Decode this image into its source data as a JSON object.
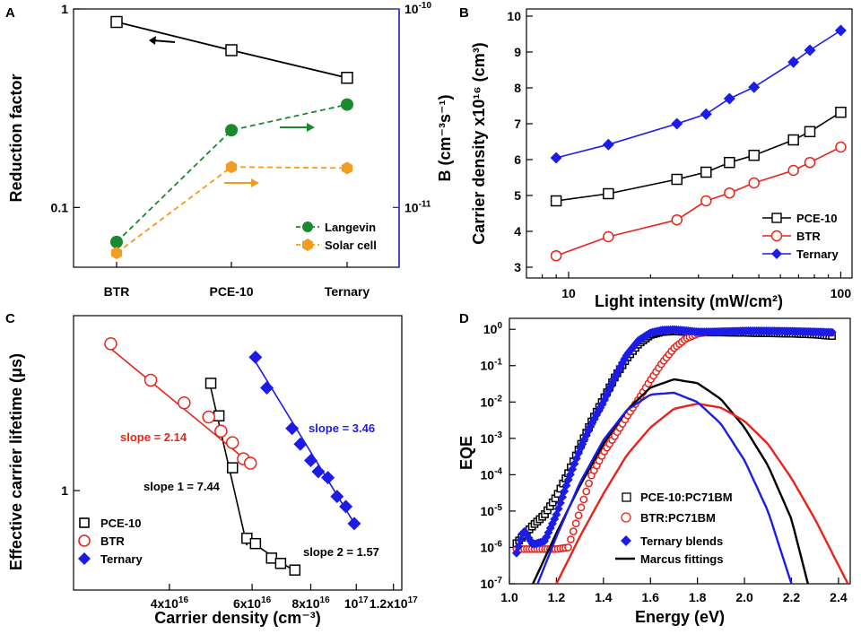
{
  "chart_data": [
    {
      "id": "A",
      "panel_label": "A",
      "type": "line",
      "categories": [
        "BTR",
        "PCE-10",
        "Ternary"
      ],
      "xlabel": "",
      "ylabel": "Reduction factor",
      "ylabel_right": "B (cm⁻³s⁻¹)",
      "yscale": "log",
      "ylim": [
        0.05,
        1
      ],
      "yticks": [
        {
          "v": 1,
          "label": "1"
        },
        {
          "v": 0.1,
          "label": "0.1"
        }
      ],
      "ylim_right": [
        5e-12,
        1e-10
      ],
      "yticks_right": [
        {
          "v": 1e-10,
          "base": "10",
          "exp": "-10"
        },
        {
          "v": 1e-11,
          "base": "10",
          "exp": "-11"
        }
      ],
      "series": [
        {
          "name": "Reduction factor",
          "axis": "left",
          "color": "#000000",
          "marker": "square-open",
          "dash": false,
          "values": [
            0.86,
            0.62,
            0.45
          ]
        },
        {
          "name": "Langevin",
          "axis": "right",
          "color": "#1a8a2e",
          "marker": "circle-filled",
          "dash": true,
          "values": [
            6.7e-12,
            2.45e-11,
            3.3e-11
          ]
        },
        {
          "name": "Solar cell",
          "axis": "right",
          "color": "#f39c22",
          "marker": "hexagon-filled",
          "dash": true,
          "values": [
            5.9e-12,
            1.6e-11,
            1.58e-11
          ]
        }
      ],
      "legend": [
        "Langevin",
        "Solar cell"
      ],
      "legend_position": "bottom-right"
    },
    {
      "id": "B",
      "panel_label": "B",
      "type": "line",
      "xlabel": "Light intensity (mW/cm²)",
      "ylabel": "Carrier density x10¹⁶ (cm³)",
      "xscale": "log",
      "xlim": [
        7,
        110
      ],
      "xticks": [
        {
          "v": 10,
          "label": "10"
        },
        {
          "v": 100,
          "label": "100"
        }
      ],
      "ylim": [
        2.7,
        10.2
      ],
      "yticks": [
        3,
        4,
        5,
        6,
        7,
        8,
        9,
        10
      ],
      "series": [
        {
          "name": "PCE-10",
          "color": "#000000",
          "marker": "square-open",
          "x": [
            9,
            14,
            25,
            32,
            39,
            48,
            67,
            77,
            100
          ],
          "values": [
            4.85,
            5.05,
            5.45,
            5.65,
            5.92,
            6.12,
            6.55,
            6.78,
            7.32
          ]
        },
        {
          "name": "BTR",
          "color": "#e8231c",
          "marker": "circle-open",
          "x": [
            9,
            14,
            25,
            32,
            39,
            48,
            67,
            77,
            100
          ],
          "values": [
            3.32,
            3.85,
            4.32,
            4.85,
            5.07,
            5.35,
            5.7,
            5.92,
            6.35
          ]
        },
        {
          "name": "Ternary",
          "color": "#1c1ce8",
          "marker": "diamond-filled",
          "x": [
            9,
            14,
            25,
            32,
            39,
            48,
            67,
            77,
            100
          ],
          "values": [
            6.05,
            6.42,
            7.0,
            7.27,
            7.7,
            8.02,
            8.72,
            9.05,
            9.6
          ]
        }
      ],
      "legend": [
        "PCE-10",
        "BTR",
        "Ternary"
      ],
      "legend_position": "bottom-right"
    },
    {
      "id": "C",
      "panel_label": "C",
      "type": "scatter",
      "xlabel": "Carrier density (cm⁻³)",
      "ylabel": "Effective carrier lifetime (μs)",
      "xscale": "log",
      "yscale": "log",
      "xlim": [
        2.5e+16,
        1.25e+17
      ],
      "xticks": [
        {
          "v": 4e+16,
          "mant": "4x10",
          "exp": "16"
        },
        {
          "v": 6e+16,
          "mant": "6x10",
          "exp": "16"
        },
        {
          "v": 8e+16,
          "mant": "8x10",
          "exp": "16"
        },
        {
          "v": 1e+17,
          "mant": "10",
          "exp": "17"
        },
        {
          "v": 1.2e+17,
          "mant": "1.2x10",
          "exp": "17"
        }
      ],
      "ylim": [
        0.42,
        4.6
      ],
      "yticks": [
        {
          "v": 1,
          "label": "1"
        }
      ],
      "series": [
        {
          "name": "PCE-10",
          "color": "#000000",
          "marker": "square-open",
          "x": [
            4.9e+16,
            5.1e+16,
            5.45e+16,
            5.85e+16,
            6.1e+16,
            6.6e+16,
            6.9e+16,
            7.4e+16
          ],
          "values": [
            2.55,
            1.92,
            1.22,
            0.66,
            0.63,
            0.555,
            0.53,
            0.5
          ]
        },
        {
          "name": "BTR",
          "color": "#e8231c",
          "marker": "circle-open",
          "x": [
            3e+16,
            3.65e+16,
            4.3e+16,
            4.85e+16,
            5.15e+16,
            5.45e+16,
            5.75e+16,
            5.95e+16
          ],
          "values": [
            3.6,
            2.62,
            2.15,
            1.9,
            1.68,
            1.52,
            1.32,
            1.27
          ]
        },
        {
          "name": "Ternary",
          "color": "#1c1ce8",
          "marker": "diamond-filled",
          "x": [
            6.1e+16,
            6.45e+16,
            7.3e+16,
            7.6e+16,
            8e+16,
            8.3e+16,
            8.7e+16,
            9.1e+16,
            9.5e+16,
            9.9e+16
          ],
          "values": [
            3.2,
            2.45,
            1.72,
            1.5,
            1.3,
            1.18,
            1.12,
            0.95,
            0.87,
            0.75
          ]
        }
      ],
      "annotations": [
        "slope = 2.14",
        "slope = 3.46",
        "slope 1 = 7.44",
        "slope 2 = 1.57"
      ],
      "legend": [
        "PCE-10",
        "BTR",
        "Ternary"
      ],
      "legend_position": "bottom-left"
    },
    {
      "id": "D",
      "panel_label": "D",
      "type": "scatter",
      "xlabel": "Energy (eV)",
      "ylabel": "EQE",
      "xlim": [
        1.0,
        2.45
      ],
      "xticks": [
        1.0,
        1.2,
        1.4,
        1.6,
        1.8,
        2.0,
        2.2,
        2.4
      ],
      "yscale": "log",
      "ylim": [
        1e-07,
        2
      ],
      "yticks": [
        {
          "v": 1,
          "base": "10",
          "exp": "0"
        },
        {
          "v": 0.1,
          "base": "10",
          "exp": "-1"
        },
        {
          "v": 0.01,
          "base": "10",
          "exp": "-2"
        },
        {
          "v": 0.001,
          "base": "10",
          "exp": "-3"
        },
        {
          "v": 0.0001,
          "base": "10",
          "exp": "-4"
        },
        {
          "v": 1e-05,
          "base": "10",
          "exp": "-5"
        },
        {
          "v": 1e-06,
          "base": "10",
          "exp": "-6"
        },
        {
          "v": 1e-07,
          "base": "10",
          "exp": "-7"
        }
      ],
      "series": [
        {
          "name": "PCE-10:PC71BM",
          "color": "#000000",
          "marker": "square-open",
          "x": [
            1.03,
            1.1,
            1.15,
            1.2,
            1.25,
            1.3,
            1.35,
            1.4,
            1.45,
            1.5,
            1.55,
            1.6,
            1.65,
            1.7,
            1.75,
            1.8,
            1.9,
            2.0,
            2.1,
            2.2,
            2.3,
            2.38
          ],
          "values": [
            1.3e-06,
            4e-06,
            8e-06,
            2.5e-05,
            0.00011,
            0.0006,
            0.003,
            0.012,
            0.05,
            0.16,
            0.4,
            0.7,
            0.85,
            0.88,
            0.85,
            0.82,
            0.82,
            0.8,
            0.78,
            0.76,
            0.72,
            0.65
          ]
        },
        {
          "name": "BTR:PC71BM",
          "color": "#e8231c",
          "marker": "circle-open",
          "x": [
            1.03,
            1.1,
            1.15,
            1.2,
            1.25,
            1.3,
            1.35,
            1.4,
            1.45,
            1.5,
            1.55,
            1.6,
            1.65,
            1.7,
            1.75,
            1.8,
            1.85,
            1.9,
            2.0,
            2.1,
            2.2,
            2.3,
            2.38
          ],
          "values": [
            9e-07,
            9e-07,
            9e-07,
            9e-07,
            1e-06,
            1e-05,
            0.0001,
            0.0004,
            0.0012,
            0.004,
            0.012,
            0.04,
            0.12,
            0.3,
            0.55,
            0.75,
            0.85,
            0.88,
            0.9,
            0.9,
            0.89,
            0.85,
            0.8
          ]
        },
        {
          "name": "Ternary blends",
          "color": "#1c1ce8",
          "marker": "diamond-filled",
          "x": [
            1.03,
            1.06,
            1.1,
            1.15,
            1.2,
            1.25,
            1.3,
            1.35,
            1.4,
            1.45,
            1.5,
            1.55,
            1.6,
            1.65,
            1.7,
            1.75,
            1.8,
            1.9,
            2.0,
            2.1,
            2.2,
            2.3,
            2.38
          ],
          "values": [
            7e-07,
            3e-06,
            1.2e-06,
            1.5e-06,
            8e-06,
            7e-05,
            0.0005,
            0.0025,
            0.01,
            0.05,
            0.2,
            0.5,
            0.8,
            0.95,
            0.98,
            0.92,
            0.85,
            0.85,
            0.9,
            0.9,
            0.88,
            0.85,
            0.82
          ]
        },
        {
          "name": "Marcus fittings",
          "color": "#000000",
          "line": true,
          "x": [
            1.1,
            1.2,
            1.3,
            1.4,
            1.5,
            1.6,
            1.7,
            1.8,
            1.9,
            2.0,
            2.1,
            2.2,
            2.27
          ],
          "values": [
            1e-07,
            2.5e-06,
            5e-05,
            0.0007,
            0.006,
            0.025,
            0.042,
            0.033,
            0.012,
            0.002,
            0.00018,
            6e-06,
            1e-07
          ]
        },
        {
          "name": "Marcus fit (BTR)",
          "color": "#e8231c",
          "line": true,
          "x": [
            1.2,
            1.3,
            1.4,
            1.5,
            1.6,
            1.7,
            1.8,
            1.9,
            2.0,
            2.1,
            2.2,
            2.3,
            2.44
          ],
          "values": [
            1e-07,
            2e-06,
            3e-05,
            0.00035,
            0.002,
            0.0065,
            0.009,
            0.007,
            0.003,
            0.0007,
            8e-05,
            6e-06,
            1e-07
          ]
        },
        {
          "name": "Marcus fit (Ternary)",
          "color": "#1c1ce8",
          "line": true,
          "x": [
            1.12,
            1.2,
            1.3,
            1.4,
            1.5,
            1.6,
            1.7,
            1.8,
            1.9,
            2.0,
            2.1,
            2.2
          ],
          "values": [
            1e-07,
            2e-06,
            6e-05,
            0.0009,
            0.006,
            0.016,
            0.018,
            0.01,
            0.0025,
            0.00025,
            1e-05,
            1e-07
          ]
        }
      ],
      "legend": [
        "PCE-10:PC71BM",
        "BTR:PC71BM",
        "Ternary blends",
        "Marcus fittings"
      ],
      "legend_position": "bottom-center"
    }
  ]
}
